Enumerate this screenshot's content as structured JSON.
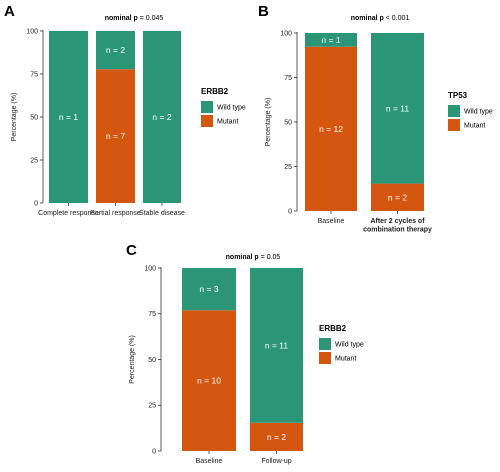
{
  "colors": {
    "wild_type": "#2a9577",
    "mutant": "#d5560f"
  },
  "chart_data": [
    {
      "panel": "A",
      "type": "bar",
      "stacked": true,
      "title_prefix": "nominal p",
      "title_value": "= 0.045",
      "ylabel": "Percentage (%)",
      "ylim": [
        0,
        100
      ],
      "yticks": [
        "0",
        "25",
        "50",
        "75",
        "100"
      ],
      "categories": [
        "Complete response",
        "Partial response",
        "Stable disease"
      ],
      "series": [
        {
          "name": "Mutant",
          "values": [
            0,
            77.8,
            0
          ],
          "labels": [
            "",
            "n = 7",
            ""
          ]
        },
        {
          "name": "Wild type",
          "values": [
            100,
            22.2,
            100
          ],
          "labels": [
            "n = 1",
            "n = 2",
            "n = 2"
          ]
        }
      ],
      "legend_title": "ERBB2",
      "legend_items": [
        "Wild type",
        "Mutant"
      ],
      "legend_position": "right"
    },
    {
      "panel": "B",
      "type": "bar",
      "stacked": true,
      "title_prefix": "nominal p",
      "title_value": "< 0.001",
      "ylabel": "Percentage (%)",
      "ylim": [
        0,
        100
      ],
      "yticks": [
        "0",
        "25",
        "50",
        "75",
        "100"
      ],
      "categories": [
        "Baseline",
        "After 2 cycles of combination therapy"
      ],
      "categories_lines": [
        [
          "Baseline"
        ],
        [
          "After 2 cycles of",
          "combination therapy"
        ]
      ],
      "series": [
        {
          "name": "Mutant",
          "values": [
            92.3,
            15.4
          ],
          "labels": [
            "n = 12",
            "n = 2"
          ]
        },
        {
          "name": "Wild type",
          "values": [
            7.7,
            84.6
          ],
          "labels": [
            "n = 1",
            "n = 11"
          ]
        }
      ],
      "legend_title": "TP53",
      "legend_items": [
        "Wild type",
        "Mutant"
      ],
      "legend_position": "right"
    },
    {
      "panel": "C",
      "type": "bar",
      "stacked": true,
      "title_prefix": "nominal p",
      "title_value": "= 0.05",
      "ylabel": "Percentage (%)",
      "ylim": [
        0,
        100
      ],
      "yticks": [
        "0",
        "25",
        "50",
        "75",
        "100"
      ],
      "categories": [
        "Baseline",
        "Follow-up"
      ],
      "series": [
        {
          "name": "Mutant",
          "values": [
            76.9,
            15.4
          ],
          "labels": [
            "n = 10",
            "n = 2"
          ]
        },
        {
          "name": "Wild type",
          "values": [
            23.1,
            84.6
          ],
          "labels": [
            "n = 3",
            "n = 11"
          ]
        }
      ],
      "legend_title": "ERBB2",
      "legend_items": [
        "Wild type",
        "Mutant"
      ],
      "legend_position": "right"
    }
  ]
}
